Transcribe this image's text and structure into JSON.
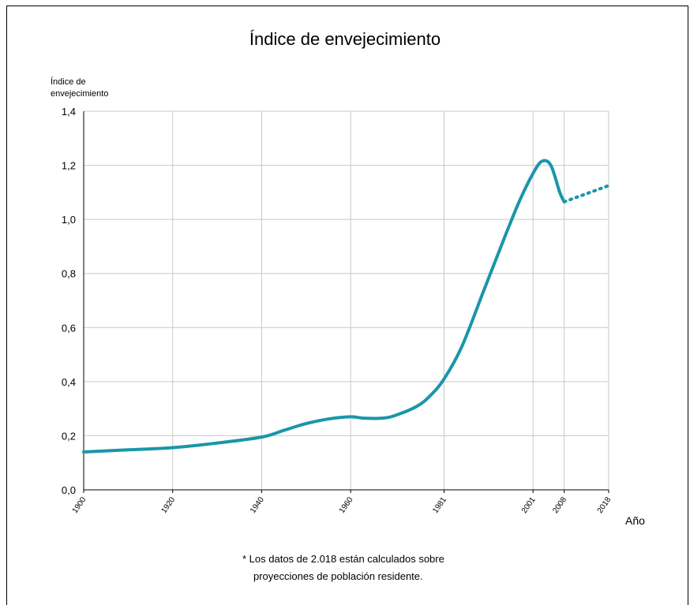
{
  "chart_data": {
    "type": "line",
    "title": "Índice de envejecimiento",
    "ylabel_lines": [
      "Índice de",
      "envejecimiento"
    ],
    "xlabel": "Año",
    "ylim": [
      0,
      1.4
    ],
    "xlim": [
      1900,
      2018
    ],
    "yticks": [
      "0,0",
      "0,2",
      "0,4",
      "0,6",
      "0,8",
      "1,0",
      "1,2",
      "1,4"
    ],
    "xticks": [
      "1900",
      "1920",
      "1940",
      "1960",
      "1981",
      "2001",
      "2008",
      "2018"
    ],
    "grid": true,
    "series": [
      {
        "style": "solid",
        "color": "#1a96a8",
        "points": [
          [
            1900,
            0.14
          ],
          [
            1910,
            0.148
          ],
          [
            1920,
            0.156
          ],
          [
            1930,
            0.173
          ],
          [
            1940,
            0.195
          ],
          [
            1945,
            0.22
          ],
          [
            1950,
            0.245
          ],
          [
            1955,
            0.262
          ],
          [
            1960,
            0.27
          ],
          [
            1963,
            0.265
          ],
          [
            1967,
            0.265
          ],
          [
            1970,
            0.275
          ],
          [
            1975,
            0.31
          ],
          [
            1978,
            0.35
          ],
          [
            1981,
            0.41
          ],
          [
            1985,
            0.53
          ],
          [
            1990,
            0.74
          ],
          [
            1995,
            0.95
          ],
          [
            1998,
            1.07
          ],
          [
            2001,
            1.17
          ],
          [
            2003,
            1.215
          ],
          [
            2005,
            1.2
          ],
          [
            2007,
            1.1
          ],
          [
            2008,
            1.065
          ]
        ]
      },
      {
        "style": "dotted",
        "color": "#1a96a8",
        "points": [
          [
            2008,
            1.065
          ],
          [
            2018,
            1.125
          ]
        ]
      }
    ]
  },
  "note_lines": [
    "* Los datos de 2.018 están calculados sobre",
    "proyecciones de población residente."
  ]
}
